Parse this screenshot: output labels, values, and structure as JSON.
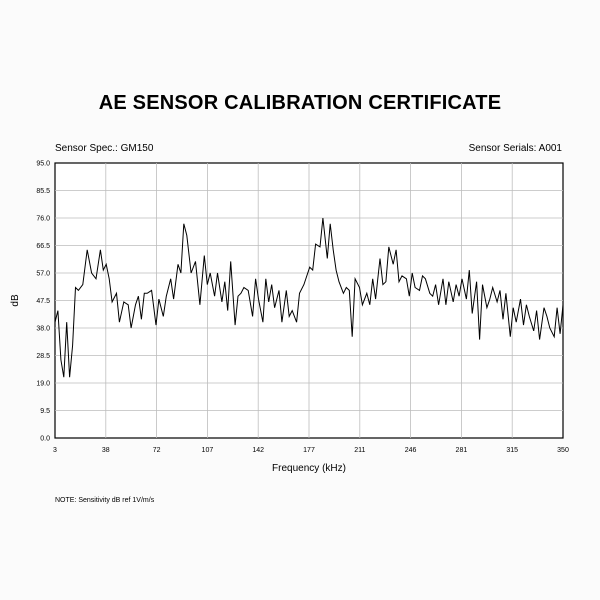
{
  "header": {
    "title": "AE SENSOR CALIBRATION CERTIFICATE",
    "sensor_spec": "Sensor Spec.: GM150",
    "sensor_serials": "Sensor Serials: A001"
  },
  "note": "NOTE:  Sensitivity dB ref 1V/m/s",
  "colors": {
    "line": "#000000",
    "grid": "#bdbdbd",
    "background": "#fbfbfb"
  },
  "chart_data": {
    "type": "line",
    "title": "",
    "xlabel": "Frequency (kHz)",
    "ylabel": "dB",
    "xlim": [
      3,
      350
    ],
    "ylim": [
      0.0,
      95.0
    ],
    "x_ticks": [
      "3",
      "38",
      "72",
      "107",
      "142",
      "177",
      "211",
      "246",
      "281",
      "315",
      "350"
    ],
    "y_ticks": [
      "95.0",
      "85.5",
      "76.0",
      "66.5",
      "57.0",
      "47.5",
      "38.0",
      "28.5",
      "19.0",
      "9.5",
      "0.0"
    ],
    "grid": true,
    "series": [
      {
        "name": "",
        "x": [
          3,
          5,
          7,
          9,
          11,
          13,
          15,
          17,
          19,
          22,
          25,
          28,
          31,
          34,
          36,
          38,
          40,
          42,
          45,
          47,
          50,
          53,
          55,
          58,
          60,
          62,
          64,
          66,
          69,
          72,
          74,
          77,
          79,
          82,
          84,
          87,
          89,
          91,
          93,
          96,
          99,
          102,
          105,
          107,
          109,
          112,
          114,
          117,
          119,
          121,
          123,
          126,
          128,
          130,
          132,
          135,
          138,
          140,
          142,
          145,
          147,
          149,
          151,
          153,
          156,
          158,
          161,
          163,
          165,
          168,
          170,
          173,
          175,
          177,
          179,
          181,
          184,
          186,
          189,
          191,
          193,
          195,
          197,
          200,
          202,
          204,
          206,
          208,
          211,
          213,
          216,
          218,
          220,
          222,
          225,
          227,
          229,
          231,
          234,
          236,
          238,
          240,
          243,
          245,
          247,
          249,
          252,
          254,
          256,
          259,
          261,
          263,
          265,
          268,
          270,
          272,
          275,
          277,
          279,
          281,
          284,
          286,
          288,
          291,
          293,
          295,
          298,
          300,
          302,
          305,
          307,
          309,
          311,
          314,
          316,
          318,
          321,
          323,
          325,
          327,
          330,
          332,
          334,
          337,
          339,
          341,
          344,
          346,
          348,
          350
        ],
        "y": [
          40,
          44,
          27,
          21,
          40,
          21,
          32,
          52,
          51,
          53,
          65,
          57,
          55,
          65,
          58,
          60,
          55,
          47,
          50,
          40,
          47,
          46,
          38,
          46,
          49,
          41,
          50,
          50,
          51,
          39,
          48,
          42,
          49,
          55,
          48,
          60,
          57,
          74,
          70,
          57,
          61,
          46,
          63,
          53,
          57,
          49,
          57,
          47,
          54,
          44,
          61,
          39,
          49,
          50,
          52,
          51,
          42,
          55,
          48,
          40,
          55,
          47,
          53,
          45,
          51,
          40,
          51,
          42,
          44,
          40,
          50,
          53,
          56,
          59,
          58,
          67,
          66,
          76,
          62,
          74,
          65,
          58,
          54,
          50,
          52,
          51,
          35,
          55,
          52,
          46,
          50,
          46,
          55,
          48,
          62,
          53,
          54,
          66,
          60,
          65,
          54,
          56,
          55,
          49,
          57,
          52,
          51,
          56,
          55,
          50,
          49,
          53,
          46,
          55,
          46,
          54,
          47,
          53,
          49,
          55,
          48,
          58,
          43,
          54,
          34,
          53,
          45,
          48,
          52,
          47,
          51,
          41,
          50,
          35,
          45,
          40,
          48,
          39,
          46,
          42,
          37,
          44,
          34,
          45,
          42,
          38,
          35,
          45,
          36,
          46
        ]
      }
    ]
  }
}
